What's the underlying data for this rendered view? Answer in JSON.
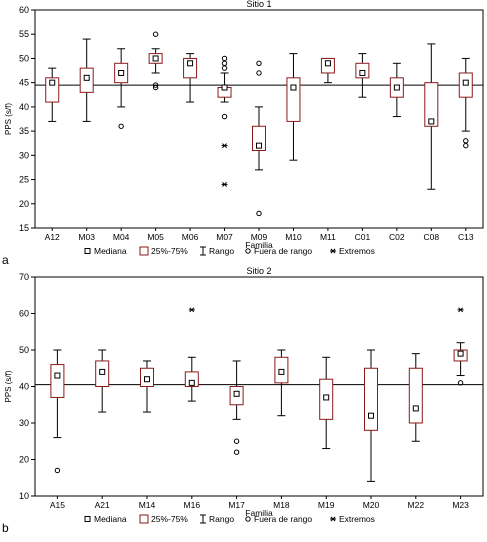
{
  "chart_data": [
    {
      "type": "box",
      "panel_label": "a",
      "title": "Sitio 1",
      "xlabel": "Familia",
      "ylabel": "PPS (s/f)",
      "ylim": [
        15,
        60
      ],
      "yticks": [
        15,
        20,
        25,
        30,
        35,
        40,
        45,
        50,
        55,
        60
      ],
      "reference_line": 44.5,
      "categories": [
        "A12",
        "M03",
        "M04",
        "M05",
        "M06",
        "M07",
        "M09",
        "M10",
        "M11",
        "C01",
        "C02",
        "C08",
        "C13"
      ],
      "boxes": [
        {
          "median": 45,
          "q1": 41,
          "q3": 46,
          "min": 37,
          "max": 48,
          "outliers": [],
          "extremes": []
        },
        {
          "median": 46,
          "q1": 43,
          "q3": 48,
          "min": 37,
          "max": 54,
          "outliers": [],
          "extremes": []
        },
        {
          "median": 47,
          "q1": 45,
          "q3": 49,
          "min": 40,
          "max": 52,
          "outliers": [
            36
          ],
          "extremes": []
        },
        {
          "median": 50,
          "q1": 49,
          "q3": 51,
          "min": 47,
          "max": 52,
          "outliers": [
            55,
            44.5,
            44
          ],
          "extremes": []
        },
        {
          "median": 49,
          "q1": 46,
          "q3": 50,
          "min": 41,
          "max": 51,
          "outliers": [],
          "extremes": []
        },
        {
          "median": 44,
          "q1": 42,
          "q3": 44,
          "min": 41,
          "max": 47,
          "outliers": [
            50,
            49,
            48,
            38
          ],
          "extremes": [
            32,
            24
          ]
        },
        {
          "median": 32,
          "q1": 31,
          "q3": 36,
          "min": 27,
          "max": 40,
          "outliers": [
            49,
            47,
            18
          ],
          "extremes": []
        },
        {
          "median": 44,
          "q1": 37,
          "q3": 46,
          "min": 29,
          "max": 51,
          "outliers": [],
          "extremes": []
        },
        {
          "median": 49,
          "q1": 47,
          "q3": 50,
          "min": 45,
          "max": 50,
          "outliers": [],
          "extremes": []
        },
        {
          "median": 47,
          "q1": 46,
          "q3": 49,
          "min": 42,
          "max": 51,
          "outliers": [],
          "extremes": []
        },
        {
          "median": 44,
          "q1": 42,
          "q3": 46,
          "min": 38,
          "max": 49,
          "outliers": [],
          "extremes": []
        },
        {
          "median": 37,
          "q1": 36,
          "q3": 45,
          "min": 23,
          "max": 53,
          "outliers": [],
          "extremes": []
        },
        {
          "median": 45,
          "q1": 42,
          "q3": 47,
          "min": 35,
          "max": 50,
          "outliers": [
            33,
            32
          ],
          "extremes": []
        }
      ],
      "legend": [
        "Mediana",
        "25%-75%",
        "Rango",
        "Fuera de rango",
        "Extremos"
      ]
    },
    {
      "type": "box",
      "panel_label": "b",
      "title": "Sitio 2",
      "xlabel": "Familia",
      "ylabel": "PPS (s/f)",
      "ylim": [
        10,
        70
      ],
      "yticks": [
        10,
        20,
        30,
        40,
        50,
        60,
        70
      ],
      "reference_line": 40.5,
      "categories": [
        "A15",
        "A21",
        "M14",
        "M16",
        "M17",
        "M18",
        "M19",
        "M20",
        "M22",
        "M23"
      ],
      "boxes": [
        {
          "median": 43,
          "q1": 37,
          "q3": 46,
          "min": 26,
          "max": 50,
          "outliers": [
            17
          ],
          "extremes": []
        },
        {
          "median": 44,
          "q1": 40,
          "q3": 47,
          "min": 33,
          "max": 50,
          "outliers": [],
          "extremes": []
        },
        {
          "median": 42,
          "q1": 40,
          "q3": 45,
          "min": 33,
          "max": 47,
          "outliers": [],
          "extremes": []
        },
        {
          "median": 41,
          "q1": 40,
          "q3": 44,
          "min": 36,
          "max": 48,
          "outliers": [],
          "extremes": [
            61
          ]
        },
        {
          "median": 38,
          "q1": 35,
          "q3": 40,
          "min": 31,
          "max": 47,
          "outliers": [
            25,
            22
          ],
          "extremes": []
        },
        {
          "median": 44,
          "q1": 41,
          "q3": 48,
          "min": 32,
          "max": 50,
          "outliers": [],
          "extremes": []
        },
        {
          "median": 37,
          "q1": 31,
          "q3": 42,
          "min": 23,
          "max": 48,
          "outliers": [],
          "extremes": []
        },
        {
          "median": 32,
          "q1": 28,
          "q3": 45,
          "min": 14,
          "max": 50,
          "outliers": [],
          "extremes": []
        },
        {
          "median": 34,
          "q1": 30,
          "q3": 45,
          "min": 25,
          "max": 49,
          "outliers": [],
          "extremes": []
        },
        {
          "median": 49,
          "q1": 47,
          "q3": 50,
          "min": 43,
          "max": 52,
          "outliers": [
            41
          ],
          "extremes": [
            61
          ]
        }
      ],
      "legend": [
        "Mediana",
        "25%-75%",
        "Rango",
        "Fuera de rango",
        "Extremos"
      ]
    }
  ],
  "colors": {
    "box_stroke": "#8b1a1a",
    "axis": "#000000",
    "reference_line": "#000000"
  },
  "icons": {
    "median": "small-square-icon",
    "iqr": "box-icon",
    "range": "whisker-icon",
    "outlier": "circle-icon",
    "extreme": "asterisk-icon"
  }
}
